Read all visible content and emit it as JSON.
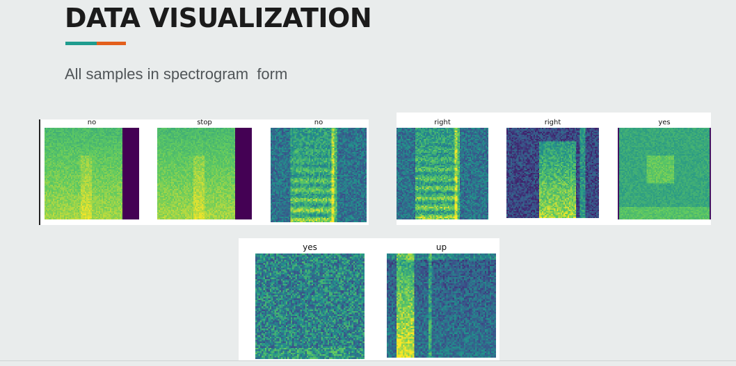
{
  "header": {
    "title": "DATA VISUALIZATION",
    "subtitle": "All samples in spectrogram  form",
    "accent_colors": [
      "#1f9c8e",
      "#e35f1c"
    ]
  },
  "spectrograms": [
    {
      "label": "no",
      "style": "bright-pad"
    },
    {
      "label": "stop",
      "style": "bright-pad"
    },
    {
      "label": "no",
      "style": "mid"
    },
    {
      "label": "right",
      "style": "mid"
    },
    {
      "label": "right",
      "style": "dark"
    },
    {
      "label": "yes",
      "style": "bright-edges"
    },
    {
      "label": "yes",
      "style": "noise"
    },
    {
      "label": "up",
      "style": "dark-bar"
    }
  ],
  "colormap": [
    "#440154",
    "#3b528b",
    "#21918c",
    "#5ec962",
    "#fde725"
  ]
}
